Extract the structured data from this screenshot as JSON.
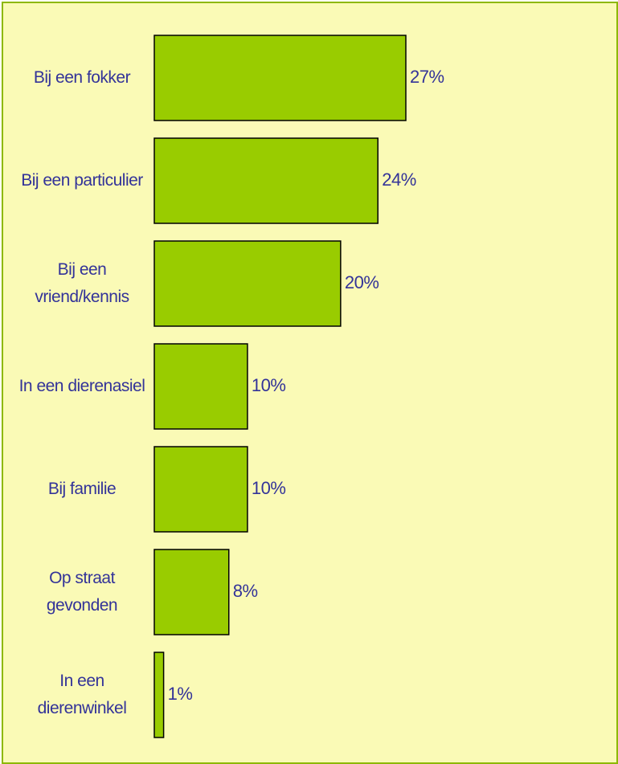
{
  "chart_data": {
    "type": "bar",
    "orientation": "horizontal",
    "categories": [
      "Bij een fokker",
      "Bij een particulier",
      "Bij een vriend/kennis",
      "In een dierenasiel",
      "Bij familie",
      "Op straat gevonden",
      "In een dierenwinkel"
    ],
    "values": [
      27,
      24,
      20,
      10,
      10,
      8,
      1
    ],
    "value_labels": [
      "27%",
      "24%",
      "20%",
      "10%",
      "10%",
      "8%",
      "1%"
    ],
    "color": "#99cc00"
  }
}
